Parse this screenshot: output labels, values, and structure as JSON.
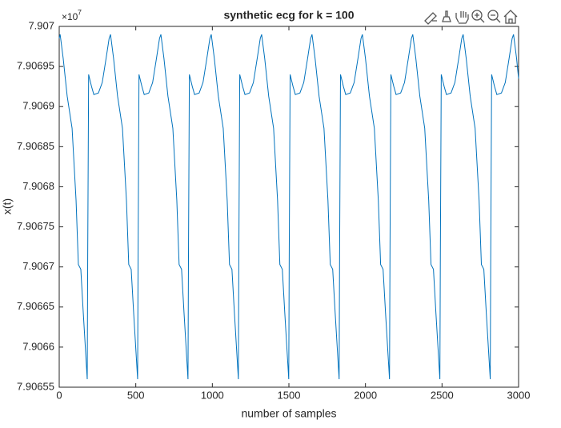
{
  "chart_data": {
    "type": "line",
    "title": "synthetic ecg for k = 100",
    "xlabel": "number of samples",
    "ylabel": "x(t)",
    "y_exponent_base": "×10",
    "y_exponent_power": "7",
    "xlim": [
      0,
      3000
    ],
    "xticks": [
      0,
      500,
      1000,
      1500,
      2000,
      2500,
      3000
    ],
    "ylim": [
      7.90655,
      7.907
    ],
    "yticks": [
      7.90655,
      7.9066,
      7.90665,
      7.9067,
      7.90675,
      7.9068,
      7.90685,
      7.9069,
      7.90695,
      7.907
    ],
    "grid": false,
    "series": [
      {
        "color": "#0072bd",
        "x": [
          0,
          6,
          26,
          52,
          84,
          110,
          125,
          141,
          157,
          183,
          186,
          192,
          211,
          226,
          256,
          281,
          306,
          326,
          335,
          355,
          381,
          413,
          439,
          454,
          470,
          486,
          512,
          515,
          521,
          540,
          555,
          585,
          610,
          635,
          655,
          664,
          684,
          710,
          742,
          768,
          783,
          799,
          815,
          841,
          844,
          850,
          869,
          884,
          914,
          939,
          964,
          984,
          993,
          1013,
          1039,
          1071,
          1097,
          1112,
          1128,
          1144,
          1170,
          1173,
          1179,
          1198,
          1213,
          1243,
          1268,
          1293,
          1313,
          1322,
          1342,
          1368,
          1400,
          1426,
          1441,
          1457,
          1473,
          1499,
          1502,
          1508,
          1527,
          1542,
          1572,
          1597,
          1622,
          1642,
          1651,
          1671,
          1697,
          1729,
          1755,
          1770,
          1786,
          1802,
          1828,
          1831,
          1837,
          1856,
          1871,
          1901,
          1926,
          1951,
          1971,
          1980,
          2000,
          2026,
          2058,
          2084,
          2099,
          2115,
          2131,
          2157,
          2160,
          2166,
          2185,
          2200,
          2230,
          2255,
          2280,
          2300,
          2309,
          2329,
          2355,
          2387,
          2413,
          2428,
          2444,
          2460,
          2486,
          2489,
          2495,
          2514,
          2529,
          2559,
          2584,
          2609,
          2629,
          2638,
          2658,
          2684,
          2716,
          2742,
          2757,
          2773,
          2789,
          2815,
          2818,
          2824,
          2843,
          2858,
          2888,
          2913,
          2938,
          2958,
          2967,
          2987,
          3000
        ],
        "values": [
          7.906985,
          7.90699,
          7.90696,
          7.906913,
          7.906873,
          7.906783,
          7.906703,
          7.906697,
          7.906643,
          7.90656,
          7.90671,
          7.90694,
          7.906925,
          7.906915,
          7.906917,
          7.90693,
          7.90696,
          7.906985,
          7.90699,
          7.90696,
          7.906913,
          7.906873,
          7.906783,
          7.906703,
          7.906697,
          7.906643,
          7.90656,
          7.90671,
          7.90694,
          7.906925,
          7.906915,
          7.906917,
          7.90693,
          7.90696,
          7.906985,
          7.90699,
          7.90696,
          7.906913,
          7.906873,
          7.906783,
          7.906703,
          7.906697,
          7.906643,
          7.90656,
          7.90671,
          7.90694,
          7.906925,
          7.906915,
          7.906917,
          7.90693,
          7.90696,
          7.906985,
          7.90699,
          7.90696,
          7.906913,
          7.906873,
          7.906783,
          7.906703,
          7.906697,
          7.906643,
          7.90656,
          7.90671,
          7.90694,
          7.906925,
          7.906915,
          7.906917,
          7.90693,
          7.90696,
          7.906985,
          7.90699,
          7.90696,
          7.906913,
          7.906873,
          7.906783,
          7.906703,
          7.906697,
          7.906643,
          7.90656,
          7.90671,
          7.90694,
          7.906925,
          7.906915,
          7.906917,
          7.90693,
          7.90696,
          7.906985,
          7.90699,
          7.90696,
          7.906913,
          7.906873,
          7.906783,
          7.906703,
          7.906697,
          7.906643,
          7.90656,
          7.90671,
          7.90694,
          7.906925,
          7.906915,
          7.906917,
          7.90693,
          7.90696,
          7.906985,
          7.90699,
          7.90696,
          7.906913,
          7.906873,
          7.906783,
          7.906703,
          7.906697,
          7.906643,
          7.90656,
          7.90671,
          7.90694,
          7.906925,
          7.906915,
          7.906917,
          7.90693,
          7.90696,
          7.906985,
          7.90699,
          7.90696,
          7.906913,
          7.906873,
          7.906783,
          7.906703,
          7.906697,
          7.906643,
          7.90656,
          7.90671,
          7.90694,
          7.906925,
          7.906915,
          7.906917,
          7.90693,
          7.90696,
          7.906985,
          7.90699,
          7.90696,
          7.906913,
          7.906873,
          7.906783,
          7.906703,
          7.906697,
          7.906643,
          7.90656,
          7.90671,
          7.90694,
          7.906925,
          7.906915,
          7.906917,
          7.90693,
          7.90696,
          7.906985,
          7.90699,
          7.90696,
          7.906935
        ]
      }
    ]
  }
}
